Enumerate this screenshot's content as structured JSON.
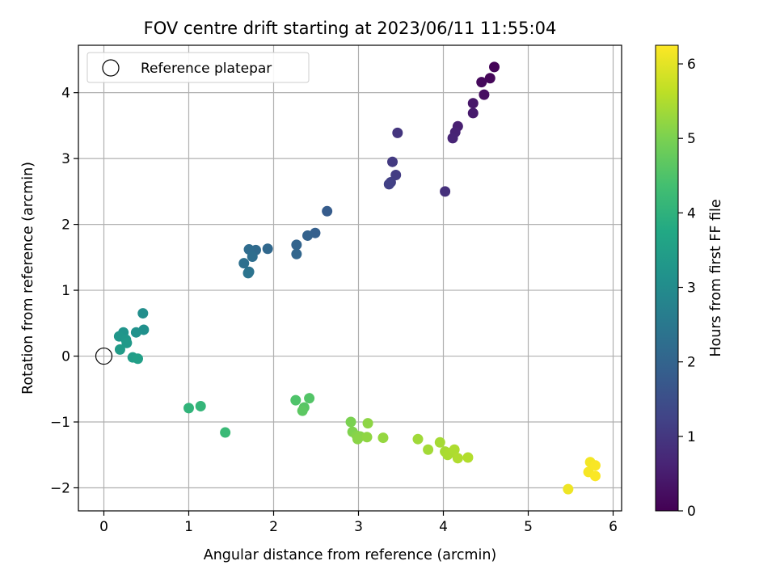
{
  "chart_data": {
    "type": "scatter",
    "title": "FOV centre drift starting at 2023/06/11 11:55:04",
    "xlabel": "Angular distance from reference (arcmin)",
    "ylabel": "Rotation from reference (arcmin)",
    "xlim": [
      -0.3,
      6.1
    ],
    "ylim": [
      -2.35,
      4.72
    ],
    "xticks": [
      0,
      1,
      2,
      3,
      4,
      5,
      6
    ],
    "yticks": [
      -2,
      -1,
      0,
      1,
      2,
      3,
      4
    ],
    "grid": true,
    "legend": {
      "placement": "upper-left",
      "entries": [
        "Reference platepar"
      ]
    },
    "reference_point": {
      "x": 0,
      "y": 0
    },
    "colorbar": {
      "label": "Hours from first FF file",
      "range": [
        0,
        6.25
      ],
      "ticks": [
        0,
        1,
        2,
        3,
        4,
        5,
        6
      ],
      "colormap": "viridis"
    },
    "points": [
      {
        "x": 4.6,
        "y": 4.39,
        "c": 0.05
      },
      {
        "x": 4.55,
        "y": 4.22,
        "c": 0.1
      },
      {
        "x": 4.45,
        "y": 4.16,
        "c": 0.15
      },
      {
        "x": 4.48,
        "y": 3.97,
        "c": 0.25
      },
      {
        "x": 4.35,
        "y": 3.84,
        "c": 0.4
      },
      {
        "x": 4.35,
        "y": 3.69,
        "c": 0.45
      },
      {
        "x": 4.17,
        "y": 3.49,
        "c": 0.55
      },
      {
        "x": 4.14,
        "y": 3.4,
        "c": 0.6
      },
      {
        "x": 4.11,
        "y": 3.31,
        "c": 0.65
      },
      {
        "x": 4.02,
        "y": 2.5,
        "c": 0.85
      },
      {
        "x": 3.46,
        "y": 3.39,
        "c": 0.95
      },
      {
        "x": 3.4,
        "y": 2.95,
        "c": 1.05
      },
      {
        "x": 3.44,
        "y": 2.75,
        "c": 1.1
      },
      {
        "x": 3.38,
        "y": 2.64,
        "c": 1.15
      },
      {
        "x": 3.36,
        "y": 2.61,
        "c": 1.2
      },
      {
        "x": 2.63,
        "y": 2.2,
        "c": 1.8
      },
      {
        "x": 2.49,
        "y": 1.87,
        "c": 1.9
      },
      {
        "x": 2.4,
        "y": 1.83,
        "c": 1.95
      },
      {
        "x": 2.27,
        "y": 1.69,
        "c": 2.0
      },
      {
        "x": 2.27,
        "y": 1.55,
        "c": 2.05
      },
      {
        "x": 1.93,
        "y": 1.63,
        "c": 2.1
      },
      {
        "x": 1.79,
        "y": 1.61,
        "c": 2.15
      },
      {
        "x": 1.71,
        "y": 1.62,
        "c": 2.2
      },
      {
        "x": 1.75,
        "y": 1.51,
        "c": 2.25
      },
      {
        "x": 1.65,
        "y": 1.41,
        "c": 2.3
      },
      {
        "x": 1.71,
        "y": 1.28,
        "c": 2.35
      },
      {
        "x": 1.7,
        "y": 1.26,
        "c": 2.4
      },
      {
        "x": 0.46,
        "y": 0.65,
        "c": 3.05
      },
      {
        "x": 0.47,
        "y": 0.4,
        "c": 3.1
      },
      {
        "x": 0.38,
        "y": 0.36,
        "c": 3.15
      },
      {
        "x": 0.23,
        "y": 0.36,
        "c": 3.2
      },
      {
        "x": 0.18,
        "y": 0.3,
        "c": 3.25
      },
      {
        "x": 0.26,
        "y": 0.25,
        "c": 3.3
      },
      {
        "x": 0.27,
        "y": 0.2,
        "c": 3.35
      },
      {
        "x": 0.19,
        "y": 0.1,
        "c": 3.4
      },
      {
        "x": 0.34,
        "y": -0.02,
        "c": 3.45
      },
      {
        "x": 0.4,
        "y": -0.04,
        "c": 3.5
      },
      {
        "x": 1.0,
        "y": -0.79,
        "c": 4.05
      },
      {
        "x": 1.14,
        "y": -0.76,
        "c": 4.1
      },
      {
        "x": 1.43,
        "y": -1.16,
        "c": 4.2
      },
      {
        "x": 2.26,
        "y": -0.67,
        "c": 4.5
      },
      {
        "x": 2.42,
        "y": -0.64,
        "c": 4.55
      },
      {
        "x": 2.36,
        "y": -0.78,
        "c": 4.6
      },
      {
        "x": 2.34,
        "y": -0.83,
        "c": 4.65
      },
      {
        "x": 2.91,
        "y": -1.0,
        "c": 5.0
      },
      {
        "x": 2.93,
        "y": -1.15,
        "c": 5.05
      },
      {
        "x": 2.98,
        "y": -1.21,
        "c": 5.1
      },
      {
        "x": 3.02,
        "y": -1.22,
        "c": 5.12
      },
      {
        "x": 2.99,
        "y": -1.26,
        "c": 5.15
      },
      {
        "x": 3.11,
        "y": -1.02,
        "c": 5.18
      },
      {
        "x": 3.1,
        "y": -1.23,
        "c": 5.2
      },
      {
        "x": 3.29,
        "y": -1.24,
        "c": 5.25
      },
      {
        "x": 3.7,
        "y": -1.26,
        "c": 5.35
      },
      {
        "x": 3.82,
        "y": -1.42,
        "c": 5.38
      },
      {
        "x": 3.96,
        "y": -1.31,
        "c": 5.4
      },
      {
        "x": 4.02,
        "y": -1.45,
        "c": 5.42
      },
      {
        "x": 4.05,
        "y": -1.5,
        "c": 5.44
      },
      {
        "x": 4.08,
        "y": -1.47,
        "c": 5.46
      },
      {
        "x": 4.13,
        "y": -1.42,
        "c": 5.48
      },
      {
        "x": 4.17,
        "y": -1.55,
        "c": 5.5
      },
      {
        "x": 4.29,
        "y": -1.54,
        "c": 5.52
      },
      {
        "x": 5.47,
        "y": -2.02,
        "c": 6.1
      },
      {
        "x": 5.73,
        "y": -1.61,
        "c": 6.15
      },
      {
        "x": 5.71,
        "y": -1.76,
        "c": 6.18
      },
      {
        "x": 5.79,
        "y": -1.66,
        "c": 6.2
      },
      {
        "x": 5.79,
        "y": -1.82,
        "c": 6.22
      }
    ]
  }
}
